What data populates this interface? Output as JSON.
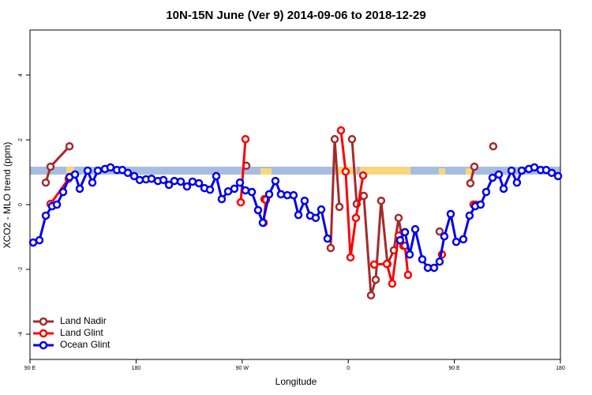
{
  "chart_data": {
    "type": "line",
    "title": "10N-15N June (Ver 9)   2014-09-06 to 2018-12-29",
    "xlabel": "Longitude",
    "ylabel": "XCO2 - MLO trend (ppm)",
    "xlim": [
      90,
      540
    ],
    "ylim": [
      -4.78,
      5.39
    ],
    "xticks": [
      {
        "value": 90,
        "label": "90 E"
      },
      180,
      {
        "value": 270,
        "label": "90 W"
      },
      {
        "value": 360,
        "label": "0"
      },
      {
        "value": 450,
        "label": "90 E"
      },
      180
    ],
    "yticks": [
      -4,
      -2,
      0,
      2,
      4
    ],
    "legend": "lower left",
    "series": [
      {
        "name": "Land Nadir",
        "color": "#a52a2a",
        "x": [
          103.4,
          107.4,
          123.5,
          null,
          273.5,
          null,
          288.9,
          null,
          345.1,
          348.5,
          352.5,
          null,
          363.2,
          367.2,
          373.2,
          379.3,
          383.3,
          387.9,
          393.3,
          398.7,
          402.7,
          406.7,
          null,
          437.5,
          null,
          463.6,
          467,
          null,
          483
        ],
        "values": [
          0.68,
          1.17,
          1.8,
          null,
          1.2,
          null,
          0.17,
          null,
          -1.34,
          2.02,
          -0.07,
          null,
          2.02,
          0.02,
          0.27,
          -2.8,
          -2.32,
          0.12,
          -1.83,
          -1.41,
          -0.41,
          -1.27,
          null,
          -0.83,
          null,
          0.66,
          1.17,
          null,
          1.8
        ]
      },
      {
        "name": "Land Glint",
        "color": "#ff0000",
        "x": [
          107.4,
          122.8,
          null,
          268.8,
          272.8,
          null,
          288.2,
          290.2,
          null,
          353.8,
          357.8,
          361.9,
          366.5,
          372.6,
          null,
          382,
          392.7,
          397.3,
          402.7,
          408.1,
          410.7,
          null,
          439.5,
          null,
          466.3,
          468.3
        ],
        "values": [
          0.02,
          0.8,
          null,
          0.07,
          2.02,
          null,
          -0.56,
          0.15,
          null,
          2.29,
          1.02,
          -1.63,
          -0.41,
          0.9,
          null,
          -1.85,
          -1.83,
          -2.44,
          -0.95,
          -1.27,
          -2.17,
          null,
          -1.54,
          null,
          0,
          0
        ]
      },
      {
        "name": "Ocean Glint",
        "color": "#0000ee",
        "x": [
          92.7,
          98,
          103.4,
          108.7,
          112.8,
          118.1,
          123.5,
          128.2,
          132.2,
          138.9,
          142.9,
          147.6,
          153.6,
          158.3,
          163.7,
          168.3,
          173,
          178.4,
          183.1,
          188.4,
          193.1,
          198.5,
          203.2,
          207.9,
          212.5,
          217.9,
          223.2,
          227.9,
          233.3,
          238,
          242.7,
          248,
          252.7,
          258.1,
          263.4,
          268.1,
          272.8,
          278.2,
          283.5,
          287.5,
          292.9,
          298.2,
          302.9,
          308.3,
          313.6,
          317.7,
          323,
          327.7,
          332.4,
          337.1,
          342.4,
          null,
          404,
          408.1,
          412.1,
          416.8,
          422.8,
          427.5,
          432.8,
          437.5,
          441.5,
          446.9,
          451.6,
          457.6,
          462.9,
          467.7,
          472.3,
          477,
          482.4,
          487.7,
          491.8,
          498.5,
          503.1,
          507.2,
          513.2,
          517.9,
          523.2,
          527.9,
          532.6,
          538
        ],
        "values": [
          -1.17,
          -1.1,
          -0.34,
          -0.05,
          0,
          0.39,
          0.85,
          0.93,
          0.49,
          1.05,
          0.68,
          1.05,
          1.1,
          1.15,
          1.07,
          1.07,
          0.98,
          0.88,
          0.76,
          0.78,
          0.8,
          0.73,
          0.76,
          0.61,
          0.73,
          0.71,
          0.56,
          0.71,
          0.66,
          0.51,
          0.46,
          0.88,
          0.17,
          0.41,
          0.49,
          0.68,
          0.44,
          0.39,
          -0.17,
          -0.56,
          0.32,
          0.73,
          0.32,
          0.29,
          0.29,
          -0.32,
          0.12,
          -0.34,
          -0.41,
          -0.15,
          -1.05,
          null,
          -1.1,
          -0.85,
          -1.54,
          -0.76,
          -1.69,
          -1.95,
          -1.95,
          -1.76,
          -0.98,
          -0.29,
          -1.15,
          -1.07,
          -0.34,
          -0.05,
          0,
          0.39,
          0.83,
          0.93,
          0.49,
          1.05,
          0.68,
          1.05,
          1.1,
          1.15,
          1.07,
          1.07,
          0.98,
          0.88
        ]
      }
    ]
  }
}
